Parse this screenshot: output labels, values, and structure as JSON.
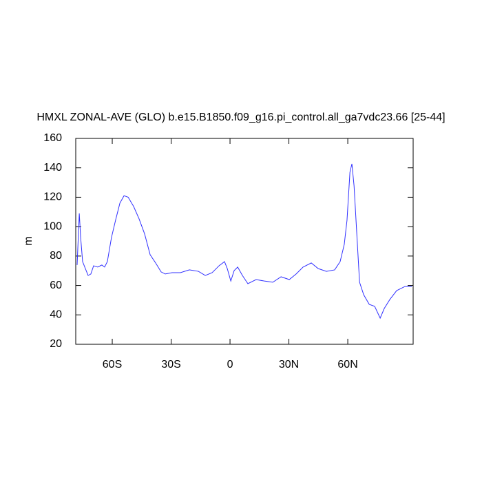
{
  "chart_data": {
    "type": "line",
    "title": "HMXL ZONAL-AVE (GLO) b.e15.B1850.f09_g16.pi_control.all_ga7vdc23.66 [25-44]",
    "y_label": "m",
    "x": [
      -77.9,
      -76.8,
      -76.1,
      -75.1,
      -73.7,
      -72.3,
      -70.9,
      -69.5,
      -67.4,
      -65.3,
      -63.9,
      -62.5,
      -60.4,
      -58.2,
      -56.1,
      -54.0,
      -51.9,
      -49.1,
      -46.3,
      -43.5,
      -40.7,
      -37.9,
      -35.1,
      -33.0,
      -29.5,
      -25.3,
      -20.7,
      -16.1,
      -12.6,
      -9.1,
      -5.6,
      -2.8,
      -1.4,
      0.4,
      2.1,
      3.9,
      6.3,
      9.1,
      13.3,
      17.5,
      21.8,
      26.0,
      30.2,
      33.7,
      37.2,
      41.4,
      44.9,
      49.1,
      53.3,
      56.1,
      58.2,
      59.6,
      61.1,
      62.1,
      63.2,
      64.6,
      66.0,
      68.1,
      70.9,
      73.7,
      76.5,
      78.6,
      81.4,
      84.9,
      89.1,
      92.6
    ],
    "series": [
      {
        "name": "HMXL",
        "color": "#3030ff",
        "values": [
          73.9,
          109,
          92.6,
          76.2,
          71.5,
          66.8,
          67.8,
          73.4,
          72.5,
          73.9,
          72.5,
          76.2,
          92.6,
          105,
          116,
          121,
          120,
          113.7,
          105.2,
          95,
          80.9,
          75.3,
          69.2,
          67.8,
          68.7,
          68.7,
          70.6,
          69.6,
          66.8,
          68.7,
          73.4,
          76.2,
          71.5,
          63,
          70.1,
          72.5,
          66.8,
          61.2,
          64,
          63,
          62.2,
          65.9,
          64,
          67.8,
          72.5,
          75.3,
          71.5,
          69.6,
          70.6,
          76.2,
          87.9,
          104.3,
          137,
          142.7,
          127.7,
          94.9,
          62.2,
          53.7,
          47.2,
          45.8,
          37.8,
          44.4,
          50.4,
          56.5,
          59.3,
          59.3
        ]
      }
    ],
    "xlim": [
      -78.6,
      93.3
    ],
    "xticks": [
      {
        "value": -60,
        "label": "60S"
      },
      {
        "value": -30,
        "label": "30S"
      },
      {
        "value": 0,
        "label": "0"
      },
      {
        "value": 30,
        "label": "30N"
      },
      {
        "value": 60,
        "label": "60N"
      }
    ],
    "ylim": [
      20,
      160
    ],
    "yticks": [
      20,
      40,
      60,
      80,
      100,
      120,
      140,
      160
    ]
  }
}
